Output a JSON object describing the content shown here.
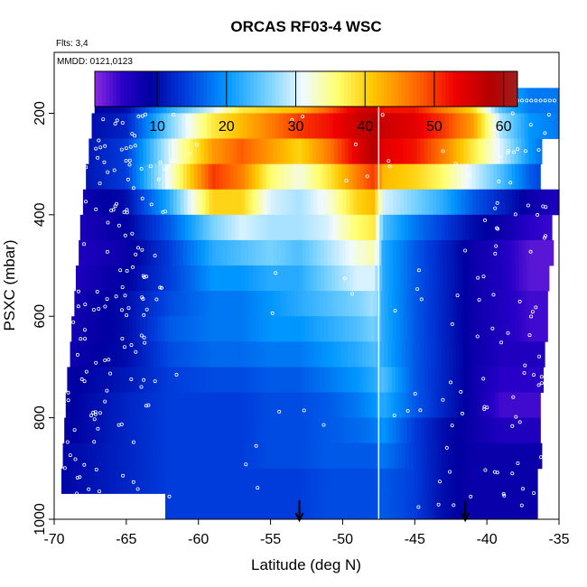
{
  "chart_data": {
    "type": "heatmap",
    "title": "ORCAS RF03-4 WSC",
    "flights_label": "Flts: 3,4",
    "mmdd_label": "MMDD: 0121,0123",
    "xlabel": "Latitude (deg N)",
    "ylabel": "PSXC (mbar)",
    "xlim": [
      -70,
      -35
    ],
    "ylim": [
      1000,
      80
    ],
    "y_reversed": true,
    "x_ticks": [
      -70,
      -65,
      -60,
      -55,
      -50,
      -45,
      -40,
      -35
    ],
    "y_ticks": [
      200,
      400,
      600,
      800,
      1000
    ],
    "colorbar": {
      "range": [
        1,
        62
      ],
      "ticks": [
        10,
        20,
        30,
        40,
        50,
        60
      ]
    },
    "vertical_line_x": -47.5,
    "arrows_x": [
      -53,
      -41.5
    ],
    "pressure_levels": [
      175,
      225,
      275,
      325,
      375,
      425,
      475,
      525,
      575,
      625,
      675,
      725,
      775,
      825,
      875,
      925,
      975
    ],
    "level_left_lat": [
      -67.2,
      -67.4,
      -67.6,
      -67.8,
      -68.0,
      -68.2,
      -68.3,
      -68.5,
      -68.6,
      -68.8,
      -68.9,
      -69.1,
      -69.2,
      -69.3,
      -69.4,
      -69.5,
      -69.6
    ],
    "level_right_lat": [
      -35.0,
      -35.0,
      -36.2,
      -36.3,
      -35.0,
      -35.5,
      -35.4,
      -35.7,
      -35.8,
      -35.8,
      -36.0,
      -36.1,
      -36.3,
      -36.3,
      -36.2,
      -36.5,
      -36.5
    ],
    "profile_lat": [
      -70,
      -65,
      -62,
      -59,
      -57,
      -55,
      -53,
      -51,
      -49,
      -47.8,
      -47.2,
      -45,
      -43,
      -41,
      -39,
      -37,
      -35
    ],
    "wind_speed": [
      [
        8,
        10,
        22,
        30,
        38,
        40,
        42,
        48,
        55,
        56,
        52,
        52,
        46,
        40,
        24,
        18,
        18
      ],
      [
        8,
        12,
        26,
        38,
        42,
        46,
        50,
        52,
        56,
        58,
        56,
        54,
        50,
        44,
        28,
        20,
        18
      ],
      [
        8,
        14,
        30,
        44,
        48,
        44,
        40,
        46,
        54,
        58,
        54,
        52,
        46,
        38,
        30,
        20,
        14
      ],
      [
        8,
        14,
        32,
        50,
        46,
        36,
        32,
        38,
        46,
        50,
        42,
        40,
        36,
        30,
        24,
        16,
        12
      ],
      [
        6,
        10,
        22,
        40,
        40,
        30,
        28,
        32,
        40,
        42,
        30,
        26,
        22,
        16,
        12,
        8,
        6
      ],
      [
        5,
        9,
        16,
        26,
        30,
        28,
        28,
        30,
        36,
        38,
        24,
        18,
        14,
        10,
        8,
        5,
        4
      ],
      [
        5,
        8,
        14,
        22,
        24,
        26,
        24,
        28,
        32,
        34,
        22,
        16,
        12,
        8,
        6,
        3,
        3
      ],
      [
        5,
        9,
        14,
        20,
        20,
        22,
        22,
        26,
        30,
        30,
        22,
        16,
        12,
        8,
        6,
        3,
        3
      ],
      [
        6,
        10,
        15,
        18,
        18,
        20,
        22,
        24,
        26,
        28,
        22,
        16,
        12,
        8,
        6,
        4,
        4
      ],
      [
        6,
        10,
        16,
        18,
        18,
        20,
        20,
        22,
        24,
        26,
        22,
        16,
        12,
        8,
        6,
        4,
        4
      ],
      [
        7,
        10,
        15,
        17,
        17,
        18,
        18,
        20,
        22,
        24,
        22,
        16,
        12,
        8,
        6,
        6,
        6
      ],
      [
        8,
        11,
        14,
        15,
        15,
        16,
        16,
        18,
        20,
        22,
        24,
        16,
        12,
        8,
        5,
        5,
        5
      ],
      [
        8,
        12,
        14,
        14,
        14,
        15,
        15,
        16,
        18,
        20,
        22,
        16,
        12,
        8,
        4,
        4,
        4
      ],
      [
        8,
        12,
        14,
        14,
        14,
        15,
        15,
        16,
        17,
        18,
        20,
        14,
        10,
        8,
        6,
        6,
        6
      ],
      [
        9,
        12,
        14,
        14,
        14,
        15,
        15,
        16,
        16,
        16,
        18,
        14,
        10,
        8,
        8,
        8,
        8
      ],
      [
        9,
        12,
        14,
        14,
        14,
        14,
        14,
        15,
        15,
        15,
        16,
        14,
        10,
        8,
        8,
        8,
        8
      ],
      [
        10,
        12,
        14,
        14,
        14,
        14,
        14,
        15,
        15,
        15,
        16,
        14,
        10,
        8,
        8,
        8,
        8
      ]
    ]
  }
}
